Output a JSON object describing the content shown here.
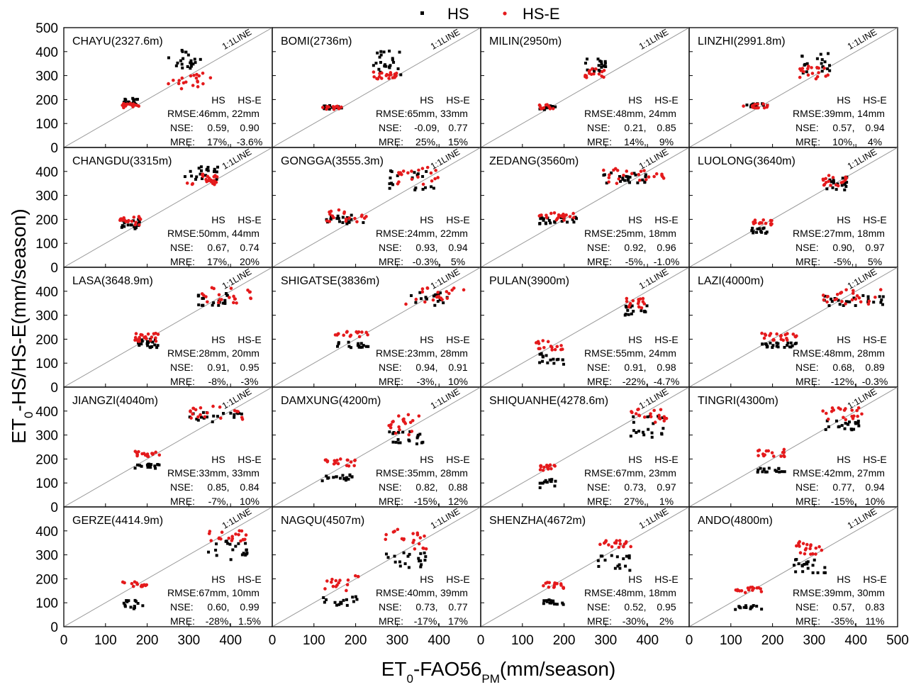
{
  "legend": {
    "items": [
      {
        "label": "HS",
        "color": "#000000"
      },
      {
        "label": "HS-E",
        "color": "#e41a1c"
      }
    ],
    "placement": "top-center"
  },
  "axes": {
    "xlabel_main": "ET",
    "xlabel_sub": "0",
    "xlabel_rest": "-FAO56",
    "xlabel_sub2": "PM",
    "xlabel_unit": "(mm/season)",
    "ylabel_main": "ET",
    "ylabel_sub": "0",
    "ylabel_rest": "-HS/HS-E(mm/season)"
  },
  "stats_labels": {
    "hs": "HS",
    "hse": "HS-E",
    "rmse": "RMSE:",
    "nse": "NSE:",
    "mre": "MRE:"
  },
  "line_label": "1:1LINE",
  "colors": {
    "hs": "#000000",
    "hse": "#e41a1c",
    "line": "#9a9a9a"
  },
  "chart_data": {
    "type": "scatter",
    "layout": "5 rows x 4 columns, shared axes",
    "xlim": [
      0,
      500
    ],
    "ylim": [
      0,
      500
    ],
    "xticks": [
      "0",
      "100",
      "200",
      "300",
      "400",
      "500"
    ],
    "yticks": [
      "0",
      "100",
      "200",
      "300",
      "400",
      "500"
    ],
    "reference_line": "1:1LINE",
    "series_names": [
      "HS",
      "HS-E"
    ],
    "panels": [
      {
        "name": "CHAYU(2327.6m)",
        "stats": {
          "rmse": [
            "46mm,",
            "22mm"
          ],
          "nse": [
            "0.59,",
            "0.90"
          ],
          "mre": [
            "17%,",
            "-3.6%"
          ]
        },
        "hs": {
          "clusters": [
            [
              140,
              180,
              175,
              205,
              18
            ],
            [
              250,
              330,
              330,
              410,
              22
            ]
          ]
        },
        "hse": {
          "clusters": [
            [
              140,
              180,
              160,
              185,
              16
            ],
            [
              250,
              355,
              245,
              310,
              20
            ]
          ]
        }
      },
      {
        "name": "BOMI(2736m)",
        "stats": {
          "rmse": [
            "65mm,",
            "33mm"
          ],
          "nse": [
            "-0.09,",
            "0.77"
          ],
          "mre": [
            "25%,",
            "15%"
          ]
        },
        "hs": {
          "clusters": [
            [
              120,
              170,
              160,
              175,
              12
            ],
            [
              240,
              310,
              300,
              405,
              24
            ]
          ]
        },
        "hse": {
          "clusters": [
            [
              120,
              170,
              158,
              172,
              14
            ],
            [
              240,
              310,
              285,
              315,
              20
            ]
          ]
        }
      },
      {
        "name": "MILIN(2950m)",
        "stats": {
          "rmse": [
            "48mm,",
            "24mm"
          ],
          "nse": [
            "0.21,",
            "0.85"
          ],
          "mre": [
            "14%,",
            "9%"
          ]
        },
        "hs": {
          "clusters": [
            [
              140,
              180,
              158,
              175,
              12
            ],
            [
              250,
              300,
              315,
              370,
              18
            ]
          ]
        },
        "hse": {
          "clusters": [
            [
              140,
              180,
              160,
              180,
              12
            ],
            [
              250,
              300,
              290,
              330,
              16
            ]
          ]
        }
      },
      {
        "name": "LINZHI(2991.8m)",
        "stats": {
          "rmse": [
            "39mm,",
            "14mm"
          ],
          "nse": [
            "0.57,",
            "0.94"
          ],
          "mre": [
            "10%,",
            "4%"
          ]
        },
        "hs": {
          "clusters": [
            [
              130,
              190,
              168,
              185,
              14
            ],
            [
              260,
              340,
              310,
              395,
              20
            ]
          ]
        },
        "hse": {
          "clusters": [
            [
              130,
              190,
              165,
              185,
              14
            ],
            [
              260,
              340,
              285,
              340,
              18
            ]
          ]
        }
      },
      {
        "name": "CHANGDU(3315m)",
        "stats": {
          "rmse": [
            "50mm,",
            "44mm"
          ],
          "nse": [
            "0.67,",
            "0.74"
          ],
          "mre": [
            "17%,",
            "20%"
          ]
        },
        "hs": {
          "clusters": [
            [
              130,
              185,
              160,
              200,
              18
            ],
            [
              290,
              370,
              360,
              420,
              22
            ]
          ]
        },
        "hse": {
          "clusters": [
            [
              130,
              185,
              175,
              215,
              18
            ],
            [
              290,
              370,
              345,
              390,
              22
            ]
          ]
        }
      },
      {
        "name": "GONGGA(3555.3m)",
        "stats": {
          "rmse": [
            "24mm,",
            "22mm"
          ],
          "nse": [
            "0.93,",
            "0.94"
          ],
          "mre": [
            "-0.3%,",
            "5%"
          ]
        },
        "hs": {
          "clusters": [
            [
              130,
              230,
              180,
              220,
              20
            ],
            [
              280,
              400,
              320,
              410,
              20
            ]
          ]
        },
        "hse": {
          "clusters": [
            [
              130,
              230,
              190,
              245,
              20
            ],
            [
              280,
              400,
              345,
              420,
              20
            ]
          ]
        }
      },
      {
        "name": "ZEDANG(3560m)",
        "stats": {
          "rmse": [
            "25mm,",
            "18mm"
          ],
          "nse": [
            "0.92,",
            "0.96"
          ],
          "mre": [
            "-5%,",
            "-1.0%"
          ]
        },
        "hs": {
          "clusters": [
            [
              140,
              230,
              180,
              210,
              22
            ],
            [
              290,
              400,
              350,
              395,
              24
            ]
          ]
        },
        "hse": {
          "clusters": [
            [
              140,
              230,
              195,
              230,
              22
            ],
            [
              290,
              450,
              350,
              415,
              24
            ]
          ]
        }
      },
      {
        "name": "LUOLONG(3640m)",
        "stats": {
          "rmse": [
            "27mm,",
            "18mm"
          ],
          "nse": [
            "0.90,",
            "0.97"
          ],
          "mre": [
            "-5%,",
            "5%"
          ]
        },
        "hs": {
          "clusters": [
            [
              150,
              200,
              140,
              165,
              14
            ],
            [
              320,
              380,
              320,
              380,
              18
            ]
          ]
        },
        "hse": {
          "clusters": [
            [
              150,
              200,
              175,
              200,
              14
            ],
            [
              320,
              380,
              340,
              385,
              18
            ]
          ]
        }
      },
      {
        "name": "LASA(3648.9m)",
        "stats": {
          "rmse": [
            "28mm,",
            "20mm"
          ],
          "nse": [
            "0.91,",
            "0.95"
          ],
          "mre": [
            "-8%,",
            "-3%"
          ]
        },
        "hs": {
          "clusters": [
            [
              170,
              230,
              165,
              200,
              22
            ],
            [
              320,
              400,
              340,
              395,
              20
            ]
          ]
        },
        "hse": {
          "clusters": [
            [
              170,
              230,
              190,
              225,
              22
            ],
            [
              320,
              450,
              345,
              415,
              22
            ]
          ]
        }
      },
      {
        "name": "SHIGATSE(3836m)",
        "stats": {
          "rmse": [
            "23mm,",
            "28mm"
          ],
          "nse": [
            "0.94,",
            "0.91"
          ],
          "mre": [
            "-3%,",
            "10%"
          ]
        },
        "hs": {
          "clusters": [
            [
              150,
              230,
              165,
              190,
              16
            ],
            [
              320,
              420,
              340,
              400,
              18
            ]
          ]
        },
        "hse": {
          "clusters": [
            [
              150,
              230,
              210,
              235,
              16
            ],
            [
              320,
              460,
              345,
              420,
              20
            ]
          ]
        }
      },
      {
        "name": "PULAN(3900m)",
        "stats": {
          "rmse": [
            "55mm,",
            "24mm"
          ],
          "nse": [
            "0.91,",
            "0.98"
          ],
          "mre": [
            "-22%,",
            "-4.7%"
          ]
        },
        "hs": {
          "clusters": [
            [
              130,
              200,
              95,
              150,
              16
            ],
            [
              340,
              400,
              300,
              345,
              16
            ]
          ]
        },
        "hse": {
          "clusters": [
            [
              130,
              200,
              155,
              195,
              16
            ],
            [
              340,
              400,
              330,
              370,
              16
            ]
          ]
        }
      },
      {
        "name": "LAZI(4000m)",
        "stats": {
          "rmse": [
            "48mm,",
            "28mm"
          ],
          "nse": [
            "0.68,",
            "0.89"
          ],
          "mre": [
            "-12%,",
            "-0.3%"
          ]
        },
        "hs": {
          "clusters": [
            [
              170,
              260,
              165,
              185,
              22
            ],
            [
              320,
              470,
              340,
              385,
              24
            ]
          ]
        },
        "hse": {
          "clusters": [
            [
              170,
              260,
              195,
              225,
              22
            ],
            [
              320,
              470,
              345,
              410,
              24
            ]
          ]
        }
      },
      {
        "name": "JIANGZI(4040m)",
        "stats": {
          "rmse": [
            "33mm,",
            "33mm"
          ],
          "nse": [
            "0.85,",
            "0.84"
          ],
          "mre": [
            "-7%,",
            "10%"
          ]
        },
        "hs": {
          "clusters": [
            [
              170,
              230,
              160,
              180,
              18
            ],
            [
              300,
              430,
              350,
              400,
              20
            ]
          ]
        },
        "hse": {
          "clusters": [
            [
              170,
              230,
              210,
              235,
              18
            ],
            [
              300,
              430,
              360,
              420,
              20
            ]
          ]
        }
      },
      {
        "name": "DAMXUNG(4200m)",
        "stats": {
          "rmse": [
            "35mm,",
            "28mm"
          ],
          "nse": [
            "0.82,",
            "0.88"
          ],
          "mre": [
            "-15%,",
            "12%"
          ]
        },
        "hs": {
          "clusters": [
            [
              120,
              200,
              105,
              135,
              18
            ],
            [
              280,
              370,
              260,
              345,
              20
            ]
          ]
        },
        "hse": {
          "clusters": [
            [
              120,
              200,
              170,
              200,
              18
            ],
            [
              280,
              370,
              300,
              385,
              20
            ]
          ]
        }
      },
      {
        "name": "SHIQUANHE(4278.6m)",
        "stats": {
          "rmse": [
            "67mm,",
            "23mm"
          ],
          "nse": [
            "0.73,",
            "0.97"
          ],
          "mre": [
            "27%,",
            "1%"
          ]
        },
        "hs": {
          "clusters": [
            [
              140,
              180,
              80,
              115,
              14
            ],
            [
              360,
              450,
              290,
              380,
              20
            ]
          ]
        },
        "hse": {
          "clusters": [
            [
              140,
              180,
              150,
              175,
              14
            ],
            [
              360,
              450,
              350,
              410,
              20
            ]
          ]
        }
      },
      {
        "name": "TINGRI(4300m)",
        "stats": {
          "rmse": [
            "42mm,",
            "27mm"
          ],
          "nse": [
            "0.77,",
            "0.94"
          ],
          "mre": [
            "-15%,",
            "10%"
          ]
        },
        "hs": {
          "clusters": [
            [
              160,
              230,
              145,
              165,
              16
            ],
            [
              320,
              410,
              320,
              360,
              20
            ]
          ]
        },
        "hse": {
          "clusters": [
            [
              160,
              230,
              210,
              240,
              16
            ],
            [
              320,
              420,
              360,
              415,
              20
            ]
          ]
        }
      },
      {
        "name": "GERZE(4414.9m)",
        "stats": {
          "rmse": [
            "67mm,",
            "10mm"
          ],
          "nse": [
            "0.60,",
            "0.99"
          ],
          "mre": [
            "-28%,",
            "1.5%"
          ]
        },
        "hs": {
          "clusters": [
            [
              140,
              200,
              70,
              110,
              14
            ],
            [
              340,
              440,
              280,
              360,
              20
            ]
          ]
        },
        "hse": {
          "clusters": [
            [
              140,
              200,
              165,
              190,
              14
            ],
            [
              340,
              440,
              355,
              405,
              20
            ]
          ]
        }
      },
      {
        "name": "NAGQU(4507m)",
        "stats": {
          "rmse": [
            "40mm,",
            "39mm"
          ],
          "nse": [
            "0.73,",
            "0.77"
          ],
          "mre": [
            "-17%,",
            "17%"
          ]
        },
        "hs": {
          "clusters": [
            [
              120,
              210,
              85,
              130,
              16
            ],
            [
              270,
              370,
              240,
              310,
              20
            ]
          ]
        },
        "hse": {
          "clusters": [
            [
              120,
              210,
              150,
              215,
              16
            ],
            [
              270,
              370,
              320,
              410,
              20
            ]
          ]
        }
      },
      {
        "name": "SHENZHA(4672m)",
        "stats": {
          "rmse": [
            "48mm,",
            "18mm"
          ],
          "nse": [
            "0.52,",
            "0.95"
          ],
          "mre": [
            "-30%,",
            "2%"
          ]
        },
        "hs": {
          "clusters": [
            [
              150,
              200,
              90,
              115,
              16
            ],
            [
              280,
              360,
              235,
              300,
              18
            ]
          ]
        },
        "hse": {
          "clusters": [
            [
              150,
              200,
              160,
              185,
              16
            ],
            [
              280,
              360,
              330,
              360,
              18
            ]
          ]
        }
      },
      {
        "name": "ANDO(4800m)",
        "stats": {
          "rmse": [
            "39mm,",
            "30mm"
          ],
          "nse": [
            "0.57,",
            "0.83"
          ],
          "mre": [
            "-35%,",
            "11%"
          ]
        },
        "hs": {
          "clusters": [
            [
              110,
              175,
              70,
              90,
              16
            ],
            [
              250,
              330,
              225,
              300,
              20
            ]
          ]
        },
        "hse": {
          "clusters": [
            [
              110,
              175,
              140,
              165,
              16
            ],
            [
              250,
              330,
              300,
              355,
              20
            ]
          ]
        }
      }
    ]
  }
}
